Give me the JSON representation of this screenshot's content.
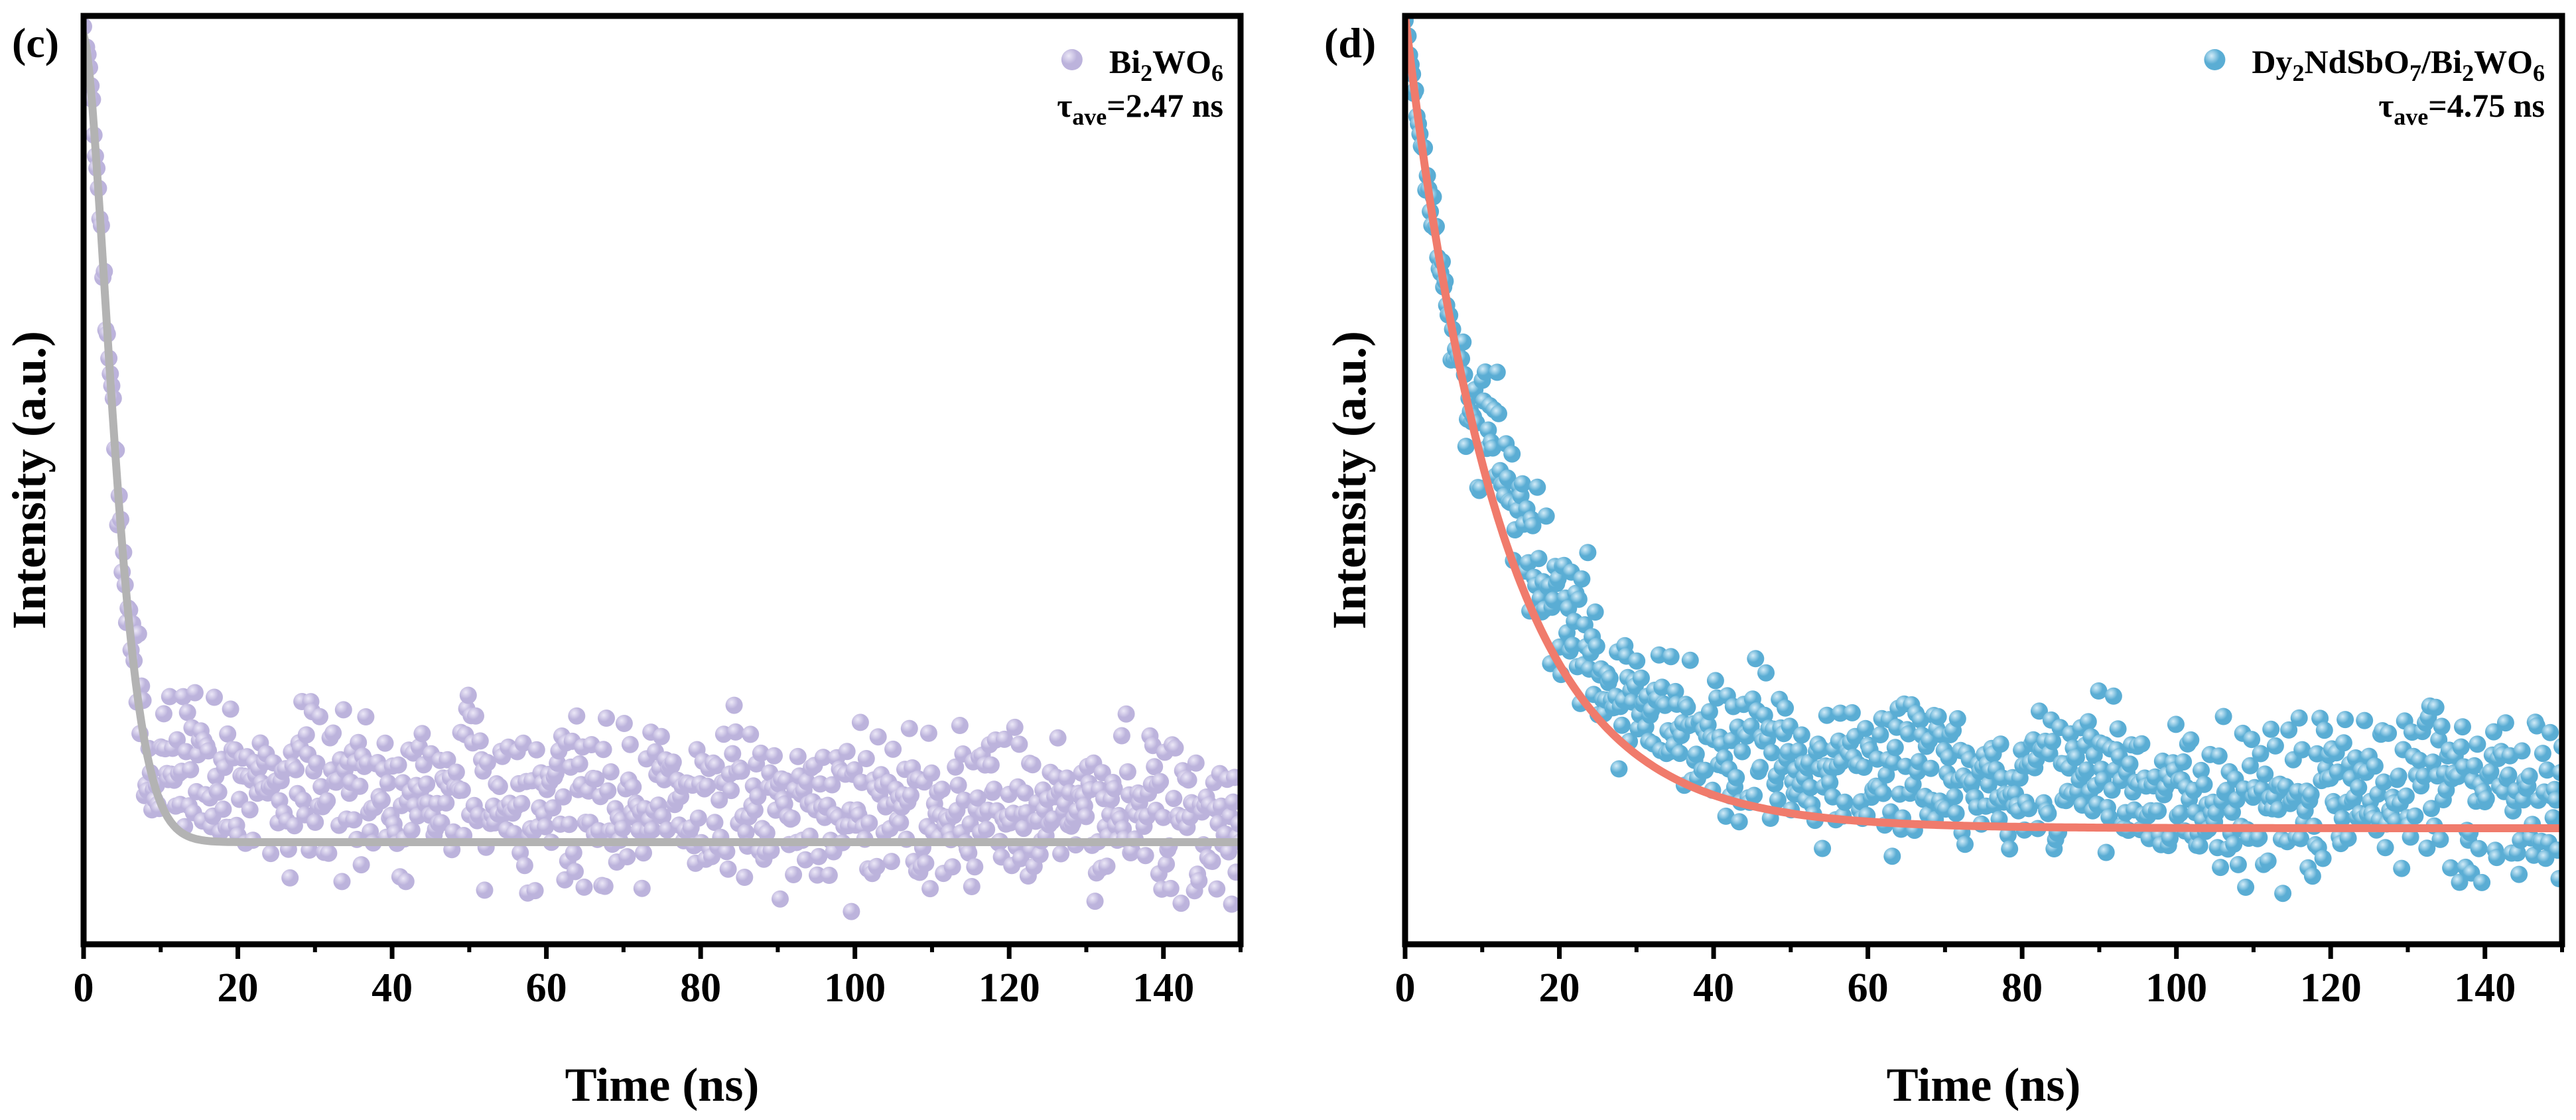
{
  "chart_data": [
    {
      "type": "scatter",
      "panel_label": "(c)",
      "xlabel": "Time (ns)",
      "ylabel": "Intensity (a.u.)",
      "xlim": [
        0,
        150
      ],
      "ylim": [
        0,
        1
      ],
      "xticks": [
        "0",
        "20",
        "40",
        "60",
        "80",
        "100",
        "120",
        "140"
      ],
      "yticks_shown": false,
      "grid": false,
      "legend_position": "top-right",
      "legend_parts": [
        "Bi",
        "2",
        "WO",
        "6"
      ],
      "tau_label": [
        "τ",
        "ave",
        "=2.47 ns"
      ],
      "marker_color": "#bcb3dc",
      "marker_highlight": "#ece8f7",
      "fit_color": "#b3b3b3",
      "fit": {
        "A": 0.87,
        "tau": 5.0,
        "baseline": 0.11,
        "power": 1.6
      },
      "noise": {
        "seed": 7,
        "amplitude": 0.05
      },
      "series": [
        {
          "name": "Bi2WO6 decay data",
          "style": "markers",
          "color": "#bcb3dc"
        },
        {
          "name": "Bi2WO6 fit",
          "style": "line",
          "color": "#b3b3b3"
        }
      ]
    },
    {
      "type": "scatter",
      "panel_label": "(d)",
      "xlabel": "Time (ns)",
      "ylabel": "Intensity (a.u.)",
      "xlim": [
        0,
        150
      ],
      "ylim": [
        0,
        1
      ],
      "xticks": [
        "0",
        "20",
        "40",
        "60",
        "80",
        "100",
        "120",
        "140"
      ],
      "yticks_shown": false,
      "grid": false,
      "legend_position": "top-right",
      "legend_parts": [
        "Dy",
        "2",
        "NdSbO",
        "7",
        "/Bi",
        "2",
        "WO",
        "6"
      ],
      "tau_label": [
        "τ",
        "ave",
        "=4.75 ns"
      ],
      "marker_color": "#5aadd4",
      "marker_highlight": "#d3ecf8",
      "fit_color": "#f07b6c",
      "fit": {
        "A": 0.875,
        "tau": 12.5,
        "baseline": 0.125,
        "power": 1.0
      },
      "noise": {
        "seed": 19,
        "amplitude": 0.05
      },
      "series": [
        {
          "name": "Dy2NdSbO7/Bi2WO6 decay data",
          "style": "markers",
          "color": "#5aadd4"
        },
        {
          "name": "Dy2NdSbO7/Bi2WO6 fit",
          "style": "line",
          "color": "#f07b6c"
        }
      ]
    }
  ]
}
